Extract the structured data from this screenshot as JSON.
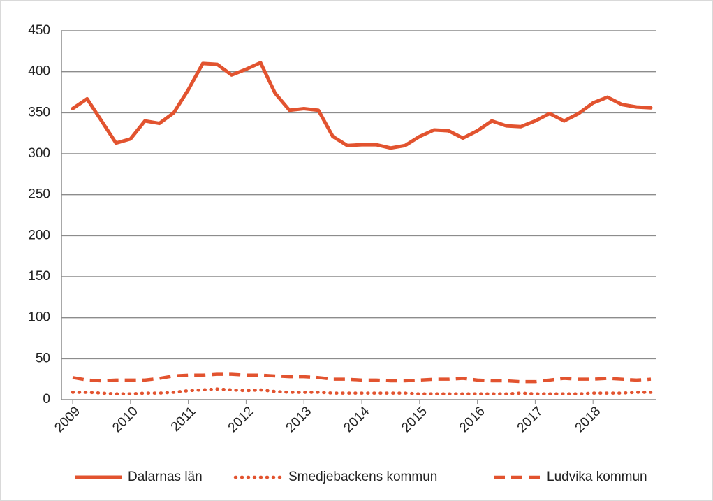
{
  "chart_data": {
    "type": "line",
    "categories": [
      "2009",
      null,
      null,
      null,
      "2010",
      null,
      null,
      null,
      "2011",
      null,
      null,
      null,
      "2012",
      null,
      null,
      null,
      "2013",
      null,
      null,
      null,
      "2014",
      null,
      null,
      null,
      "2015",
      null,
      null,
      null,
      "2016",
      null,
      null,
      null,
      "2017",
      null,
      null,
      null,
      "2018",
      null,
      null,
      null,
      null
    ],
    "series": [
      {
        "name": "Dalarnas län",
        "color": "#e2532f",
        "style": "solid",
        "values": [
          355,
          367,
          340,
          313,
          318,
          340,
          337,
          350,
          378,
          410,
          409,
          396,
          403,
          411,
          374,
          353,
          355,
          353,
          321,
          310,
          311,
          311,
          307,
          310,
          321,
          329,
          328,
          319,
          328,
          340,
          334,
          333,
          340,
          349,
          340,
          349,
          362,
          369,
          360,
          357,
          356
        ]
      },
      {
        "name": "Smedjebackens kommun",
        "color": "#e2532f",
        "style": "dotted",
        "values": [
          9,
          9,
          8,
          7,
          7,
          8,
          8,
          9,
          11,
          12,
          13,
          12,
          11,
          12,
          10,
          9,
          9,
          9,
          8,
          8,
          8,
          8,
          8,
          8,
          7,
          7,
          7,
          7,
          7,
          7,
          7,
          8,
          7,
          7,
          7,
          7,
          8,
          8,
          8,
          9,
          9
        ]
      },
      {
        "name": "Ludvika kommun",
        "color": "#e2532f",
        "style": "dashed",
        "values": [
          27,
          24,
          23,
          24,
          24,
          24,
          26,
          29,
          30,
          30,
          31,
          31,
          30,
          30,
          29,
          28,
          28,
          27,
          25,
          25,
          24,
          24,
          23,
          23,
          24,
          25,
          25,
          26,
          24,
          23,
          23,
          22,
          22,
          24,
          26,
          25,
          25,
          26,
          25,
          24,
          25
        ]
      }
    ],
    "ylim": [
      0,
      450
    ],
    "yticks": [
      0,
      50,
      100,
      150,
      200,
      250,
      300,
      350,
      400,
      450
    ],
    "grid": true
  }
}
